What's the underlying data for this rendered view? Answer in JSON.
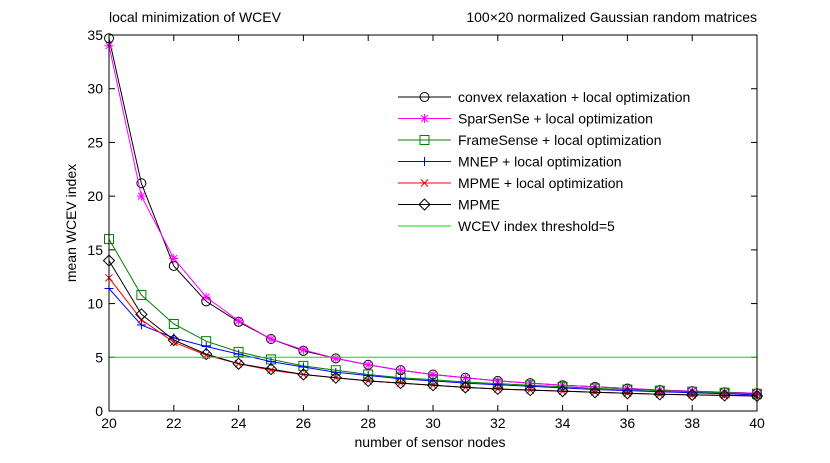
{
  "chart_data": {
    "type": "line",
    "title_left": "local minimization of WCEV",
    "title_right": "100×20 normalized Gaussian random matrices",
    "xlabel": "number of sensor nodes",
    "ylabel": "mean WCEV index",
    "xlim": [
      20,
      40
    ],
    "ylim": [
      0,
      35
    ],
    "xticks": [
      20,
      22,
      24,
      26,
      28,
      30,
      32,
      34,
      36,
      38,
      40
    ],
    "yticks": [
      0,
      5,
      10,
      15,
      20,
      25,
      30,
      35
    ],
    "grid": false,
    "legend_position": "top-right",
    "x": [
      20,
      21,
      22,
      23,
      24,
      25,
      26,
      27,
      28,
      29,
      30,
      31,
      32,
      33,
      34,
      35,
      36,
      37,
      38,
      39,
      40
    ],
    "series": [
      {
        "name": "convex relaxation + local optimization",
        "color": "#000000",
        "marker": "circle",
        "values": [
          34.7,
          21.2,
          13.5,
          10.2,
          8.3,
          6.7,
          5.6,
          4.9,
          4.3,
          3.8,
          3.4,
          3.1,
          2.8,
          2.6,
          2.4,
          2.25,
          2.1,
          1.95,
          1.85,
          1.75,
          1.65
        ]
      },
      {
        "name": "SparSenSe + local optimization",
        "color": "#ff00ff",
        "marker": "star",
        "values": [
          34.0,
          20.0,
          14.2,
          10.6,
          8.4,
          6.7,
          5.7,
          4.9,
          4.3,
          3.8,
          3.4,
          3.1,
          2.8,
          2.6,
          2.4,
          2.25,
          2.1,
          1.95,
          1.85,
          1.75,
          1.65
        ]
      },
      {
        "name": "FrameSense + local optimization",
        "color": "#008000",
        "marker": "square",
        "values": [
          16.0,
          10.8,
          8.1,
          6.5,
          5.5,
          4.8,
          4.2,
          3.8,
          3.4,
          3.1,
          2.9,
          2.7,
          2.55,
          2.4,
          2.25,
          2.1,
          2.0,
          1.9,
          1.8,
          1.7,
          1.6
        ]
      },
      {
        "name": "MNEP + local optimization",
        "color": "#0000ff",
        "marker": "plus",
        "values": [
          11.4,
          8.0,
          6.8,
          6.0,
          5.3,
          4.6,
          4.1,
          3.6,
          3.3,
          3.0,
          2.8,
          2.6,
          2.45,
          2.3,
          2.15,
          2.0,
          1.9,
          1.8,
          1.7,
          1.6,
          1.5
        ]
      },
      {
        "name": "MPME + local optimization",
        "color": "#ff0000",
        "marker": "cross",
        "values": [
          12.4,
          8.5,
          6.4,
          5.2,
          4.4,
          3.8,
          3.4,
          3.1,
          2.8,
          2.6,
          2.4,
          2.2,
          2.05,
          1.95,
          1.85,
          1.75,
          1.65,
          1.55,
          1.5,
          1.45,
          1.4
        ]
      },
      {
        "name": "MPME",
        "color": "#000000",
        "marker": "diamond",
        "values": [
          14.0,
          9.0,
          6.6,
          5.3,
          4.4,
          3.9,
          3.4,
          3.1,
          2.8,
          2.6,
          2.4,
          2.2,
          2.05,
          1.95,
          1.85,
          1.75,
          1.65,
          1.55,
          1.5,
          1.45,
          1.4
        ]
      },
      {
        "name": "WCEV index threshold=5",
        "color": "#00e000",
        "marker": "none",
        "values": [
          5,
          5,
          5,
          5,
          5,
          5,
          5,
          5,
          5,
          5,
          5,
          5,
          5,
          5,
          5,
          5,
          5,
          5,
          5,
          5,
          5
        ]
      }
    ]
  }
}
